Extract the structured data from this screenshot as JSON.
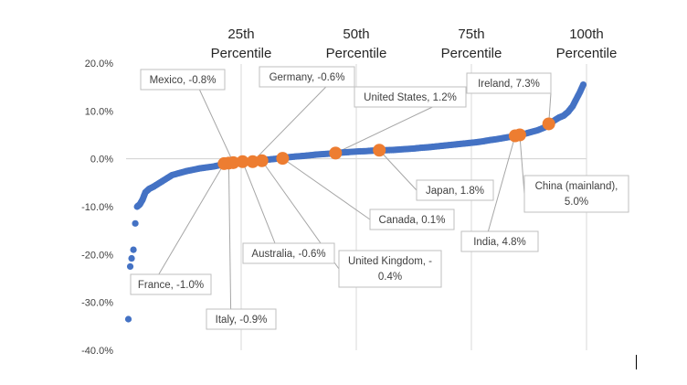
{
  "chart_data": {
    "type": "scatter",
    "colors": {
      "series": "#4472c4",
      "highlight": "#ed7d31"
    },
    "y_ticks": [
      "20.0%",
      "10.0%",
      "0.0%",
      "-10.0%",
      "-20.0%",
      "-30.0%",
      "-40.0%"
    ],
    "ylim": [
      -40,
      20
    ],
    "xlim": [
      0,
      100
    ],
    "percentile_lines": [
      {
        "percentile": 25,
        "line1": "25th",
        "line2": "Percentile"
      },
      {
        "percentile": 50,
        "line1": "50th",
        "line2": "Percentile"
      },
      {
        "percentile": 75,
        "line1": "75th",
        "line2": "Percentile"
      },
      {
        "percentile": 100,
        "line1": "100th",
        "line2": "Percentile"
      }
    ],
    "series_points": [
      [
        0.5,
        -33.5
      ],
      [
        0.9,
        -22.5
      ],
      [
        1.2,
        -20.8
      ],
      [
        1.6,
        -19.0
      ],
      [
        2.0,
        -13.5
      ],
      [
        2.4,
        -10.0
      ],
      [
        3.0,
        -9.5
      ],
      [
        3.6,
        -8.5
      ],
      [
        4.2,
        -7.0
      ],
      [
        5.0,
        -6.3
      ],
      [
        6.0,
        -5.8
      ],
      [
        7.0,
        -5.2
      ],
      [
        8.0,
        -4.6
      ],
      [
        9.0,
        -4.0
      ],
      [
        10.0,
        -3.4
      ],
      [
        11.5,
        -3.0
      ],
      [
        13.0,
        -2.6
      ],
      [
        14.5,
        -2.3
      ],
      [
        16.0,
        -2.0
      ],
      [
        17.5,
        -1.8
      ],
      [
        19.0,
        -1.6
      ],
      [
        20.5,
        -1.3
      ],
      [
        22.0,
        -1.1
      ],
      [
        23.5,
        -0.9
      ],
      [
        25.0,
        -0.8
      ],
      [
        26.5,
        -0.6
      ],
      [
        28.0,
        -0.45
      ],
      [
        29.5,
        -0.3
      ],
      [
        31.0,
        -0.15
      ],
      [
        32.5,
        0.0
      ],
      [
        34.0,
        0.2
      ],
      [
        35.5,
        0.35
      ],
      [
        37.0,
        0.5
      ],
      [
        38.5,
        0.6
      ],
      [
        40.0,
        0.75
      ],
      [
        41.5,
        0.9
      ],
      [
        43.0,
        1.0
      ],
      [
        44.5,
        1.1
      ],
      [
        46.0,
        1.25
      ],
      [
        47.5,
        1.35
      ],
      [
        49.0,
        1.45
      ],
      [
        50.5,
        1.55
      ],
      [
        52.0,
        1.6
      ],
      [
        53.5,
        1.7
      ],
      [
        55.0,
        1.75
      ],
      [
        56.5,
        1.8
      ],
      [
        58.0,
        1.85
      ],
      [
        59.5,
        1.95
      ],
      [
        61.0,
        2.05
      ],
      [
        62.5,
        2.15
      ],
      [
        64.0,
        2.3
      ],
      [
        65.5,
        2.4
      ],
      [
        67.0,
        2.55
      ],
      [
        68.5,
        2.7
      ],
      [
        70.0,
        2.85
      ],
      [
        71.5,
        3.0
      ],
      [
        73.0,
        3.15
      ],
      [
        74.5,
        3.3
      ],
      [
        76.0,
        3.45
      ],
      [
        77.5,
        3.65
      ],
      [
        79.0,
        3.9
      ],
      [
        80.5,
        4.1
      ],
      [
        82.0,
        4.35
      ],
      [
        83.5,
        4.6
      ],
      [
        85.0,
        4.85
      ],
      [
        86.5,
        5.2
      ],
      [
        88.0,
        5.6
      ],
      [
        89.5,
        6.0
      ],
      [
        91.0,
        6.6
      ],
      [
        92.0,
        7.3
      ],
      [
        93.0,
        8.0
      ],
      [
        94.0,
        8.6
      ],
      [
        95.0,
        9.0
      ],
      [
        96.0,
        9.8
      ],
      [
        97.0,
        11.0
      ],
      [
        97.8,
        12.5
      ],
      [
        98.6,
        14.0
      ],
      [
        99.3,
        15.5
      ]
    ],
    "highlighted": [
      {
        "name": "Mexico",
        "value": -0.8,
        "text": "Mexico, -0.8%",
        "x": 23.3
      },
      {
        "name": "France",
        "value": -1.0,
        "text": "France, -1.0%",
        "x": 21.3
      },
      {
        "name": "Italy",
        "value": -0.9,
        "text": "Italy, -0.9%",
        "x": 22.3
      },
      {
        "name": "Australia",
        "value": -0.6,
        "text": "Australia, -0.6%",
        "x": 25.3
      },
      {
        "name": "Germany",
        "value": -0.6,
        "text": "Germany, -0.6%",
        "x": 27.5
      },
      {
        "name": "United Kingdom",
        "value": -0.4,
        "text": [
          "United Kingdom, -",
          "0.4%"
        ],
        "x": 29.5
      },
      {
        "name": "Canada",
        "value": 0.1,
        "text": "Canada, 0.1%",
        "x": 34.0
      },
      {
        "name": "United States",
        "value": 1.2,
        "text": "United States, 1.2%",
        "x": 45.5
      },
      {
        "name": "Japan",
        "value": 1.8,
        "text": "Japan, 1.8%",
        "x": 55.0
      },
      {
        "name": "India",
        "value": 4.8,
        "text": "India, 4.8%",
        "x": 84.5
      },
      {
        "name": "China (mainland)",
        "value": 5.0,
        "text": [
          "China (mainland),",
          "5.0%"
        ],
        "x": 85.5
      },
      {
        "name": "Ireland",
        "value": 7.3,
        "text": "Ireland, 7.3%",
        "x": 91.8
      }
    ]
  }
}
